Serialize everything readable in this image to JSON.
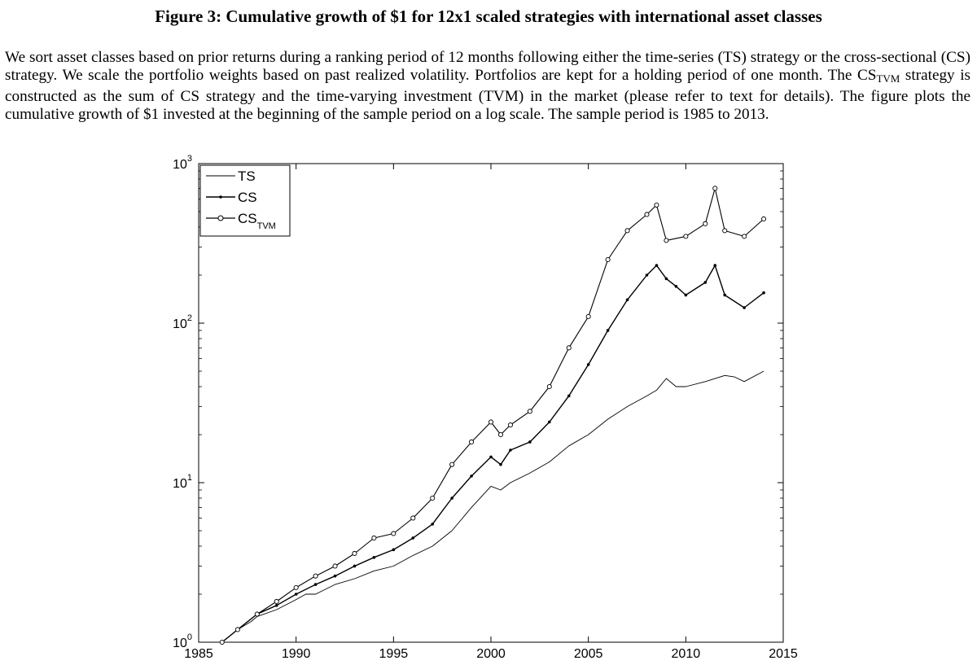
{
  "figure": {
    "title": "Figure 3: Cumulative growth of $1 for 12x1 scaled strategies with international asset classes",
    "caption": {
      "part1": "We sort asset classes based on prior returns during a ranking period of 12 months following either the time-series (TS) strategy or the cross-sectional (CS) strategy. We scale the portfolio weights based on past realized volatility. Portfolios are kept for a holding period of one month. The CS",
      "sub": "TVM",
      "part2": " strategy is constructed as the sum of CS strategy and the time-varying investment (TVM) in the market (please refer to text for details). The figure plots the cumulative growth of $1 invested at the beginning of the sample period on a log scale. The sample period is 1985 to 2013."
    }
  },
  "chart_data": {
    "type": "line",
    "title": "",
    "xlabel": "",
    "ylabel": "",
    "yscale": "log",
    "xlim": [
      1985,
      2015
    ],
    "ylim": [
      1,
      1000
    ],
    "x_ticks": [
      "1985",
      "1990",
      "1995",
      "2000",
      "2005",
      "2010",
      "2015"
    ],
    "y_ticks": [
      {
        "base": "10",
        "exp": "0"
      },
      {
        "base": "10",
        "exp": "1"
      },
      {
        "base": "10",
        "exp": "2"
      },
      {
        "base": "10",
        "exp": "3"
      }
    ],
    "legend": {
      "position": "top-left",
      "entries": [
        {
          "label": "TS",
          "marker": "none"
        },
        {
          "label": "CS",
          "marker": "dot"
        },
        {
          "label": "CS",
          "sub": "TVM",
          "marker": "circle"
        }
      ]
    },
    "series": [
      {
        "name": "TS",
        "x": [
          1986.2,
          1987,
          1987.7,
          1988,
          1989,
          1990,
          1990.5,
          1991,
          1992,
          1993,
          1994,
          1995,
          1996,
          1997,
          1998,
          1999,
          2000,
          2000.5,
          2001,
          2002,
          2003,
          2004,
          2005,
          2006,
          2007,
          2008,
          2008.5,
          2009,
          2009.5,
          2010,
          2011,
          2012,
          2012.5,
          2013,
          2014
        ],
        "values": [
          1.0,
          1.2,
          1.35,
          1.45,
          1.6,
          1.85,
          2.0,
          2.0,
          2.3,
          2.5,
          2.8,
          3.0,
          3.5,
          4.0,
          5.0,
          7.0,
          9.5,
          9.0,
          10.0,
          11.5,
          13.5,
          17.0,
          20.0,
          25.0,
          30.0,
          35.0,
          38.0,
          45.0,
          40.0,
          40.0,
          43.0,
          47.0,
          46.0,
          43.0,
          50.0
        ]
      },
      {
        "name": "CS",
        "x": [
          1986.2,
          1987,
          1988,
          1989,
          1990,
          1991,
          1992,
          1993,
          1994,
          1995,
          1996,
          1997,
          1998,
          1999,
          2000,
          2000.5,
          2001,
          2002,
          2003,
          2004,
          2005,
          2006,
          2007,
          2008,
          2008.5,
          2009,
          2009.5,
          2010,
          2011,
          2011.5,
          2012,
          2013,
          2014
        ],
        "values": [
          1.0,
          1.2,
          1.5,
          1.7,
          2.0,
          2.3,
          2.6,
          3.0,
          3.4,
          3.8,
          4.5,
          5.5,
          8.0,
          11.0,
          14.5,
          13.0,
          16.0,
          18.0,
          24.0,
          35.0,
          55.0,
          90.0,
          140.0,
          200.0,
          230.0,
          190.0,
          170.0,
          150.0,
          180.0,
          230.0,
          150.0,
          125.0,
          155.0
        ]
      },
      {
        "name": "CS_TVM",
        "x": [
          1986.2,
          1987,
          1988,
          1989,
          1990,
          1991,
          1992,
          1993,
          1994,
          1995,
          1996,
          1997,
          1998,
          1999,
          2000,
          2000.5,
          2001,
          2002,
          2003,
          2004,
          2005,
          2006,
          2007,
          2008,
          2008.5,
          2009,
          2010,
          2011,
          2011.5,
          2012,
          2013,
          2014
        ],
        "values": [
          1.0,
          1.2,
          1.5,
          1.8,
          2.2,
          2.6,
          3.0,
          3.6,
          4.5,
          4.8,
          6.0,
          8.0,
          13.0,
          18.0,
          24.0,
          20.0,
          23.0,
          28.0,
          40.0,
          70.0,
          110.0,
          250.0,
          380.0,
          480.0,
          550.0,
          330.0,
          350.0,
          420.0,
          700.0,
          380.0,
          350.0,
          450.0
        ]
      }
    ]
  }
}
